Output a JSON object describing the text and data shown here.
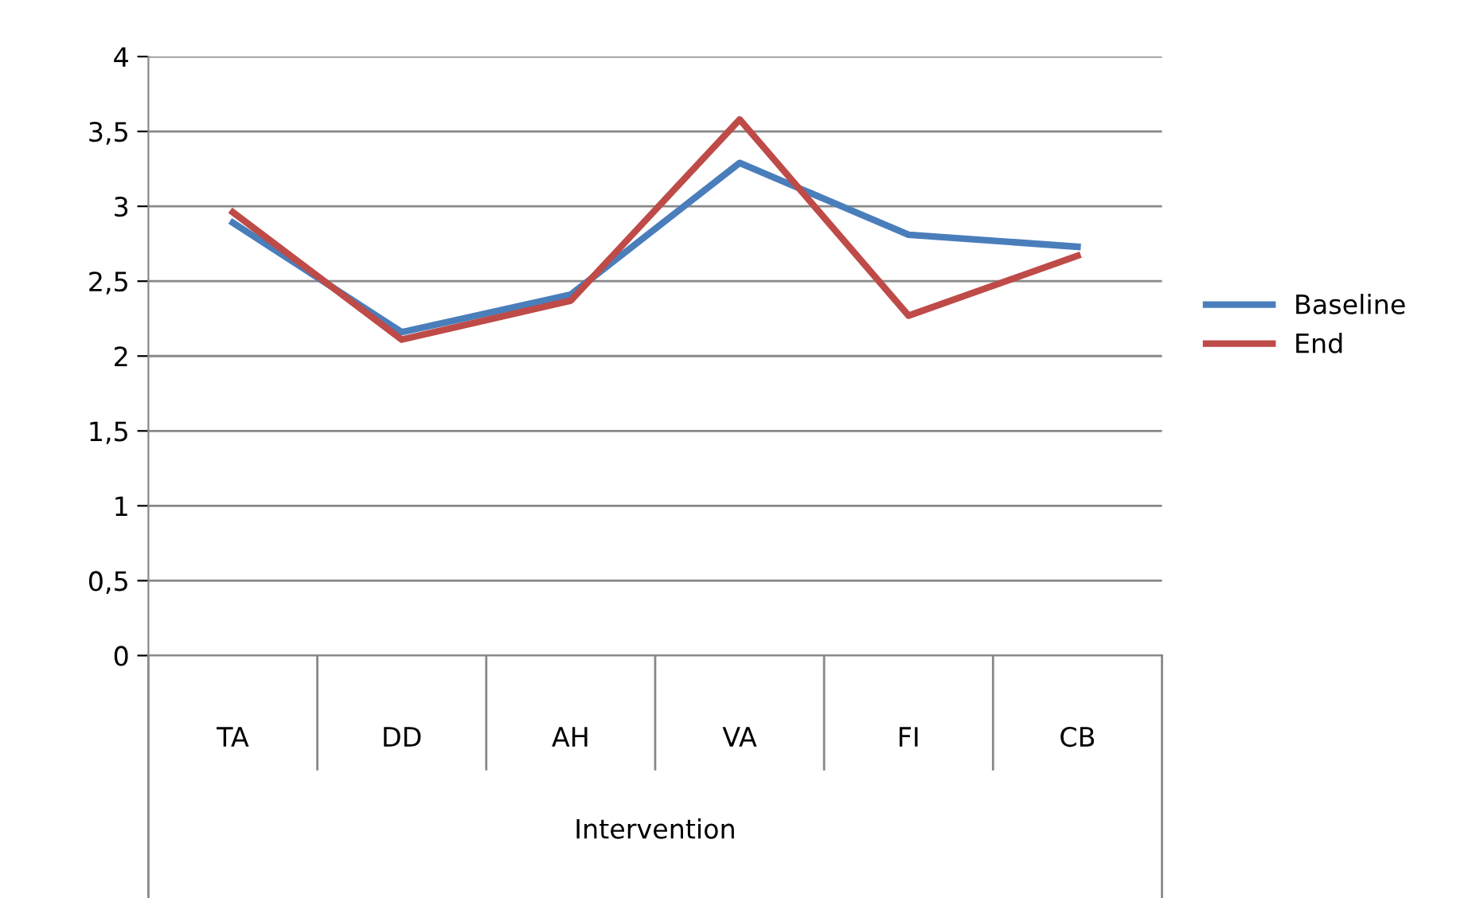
{
  "chart_data": {
    "type": "line",
    "xlabel": "Intervention",
    "categories": [
      "TA",
      "DD",
      "AH",
      "VA",
      "FI",
      "CB"
    ],
    "series": [
      {
        "name": "Baseline",
        "color": "#4a7ebb",
        "values": [
          2.89,
          2.16,
          2.41,
          3.29,
          2.81,
          2.73
        ]
      },
      {
        "name": "End",
        "color": "#be4b48",
        "values": [
          2.96,
          2.11,
          2.37,
          3.58,
          2.27,
          2.67
        ]
      }
    ],
    "ylim": [
      0,
      4
    ],
    "yticks": [
      0,
      {
        "value": 0.5,
        "label": "0,5"
      },
      1,
      {
        "value": 1.5,
        "label": "1,5"
      },
      2,
      {
        "value": 2.5,
        "label": "2,5"
      },
      3,
      {
        "value": 3.5,
        "label": "3,5"
      },
      4
    ],
    "grid": "y",
    "legend": "right",
    "marker": "none",
    "line_style": "solid"
  }
}
